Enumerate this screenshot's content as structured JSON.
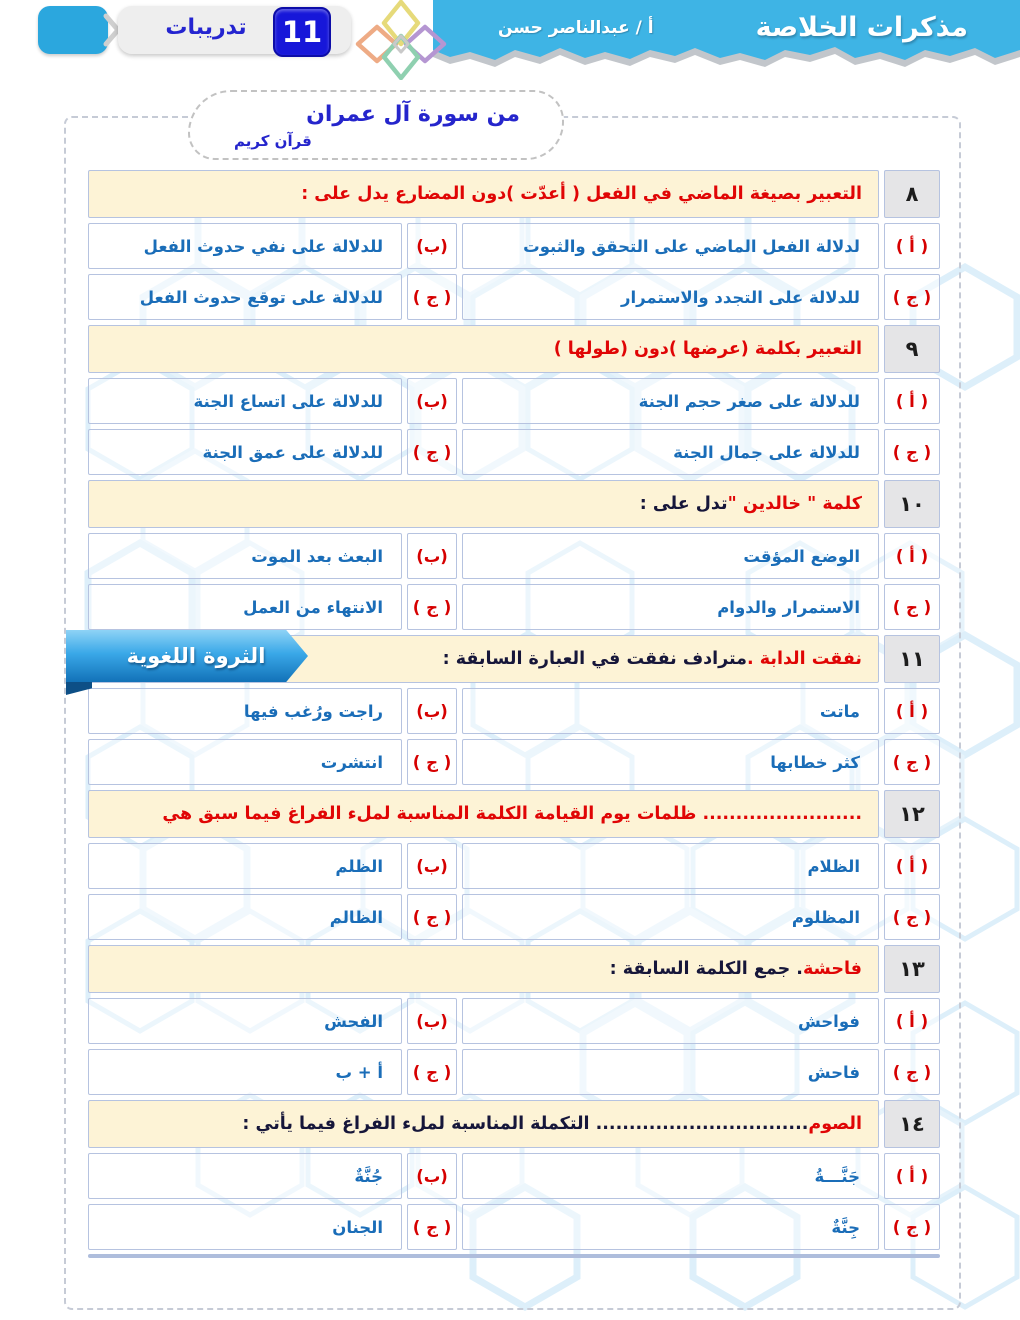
{
  "header": {
    "title": "مذكرات الخلاصة",
    "teacher": "أ / عبدالناصر حسن",
    "lesson_number": "11",
    "lesson_label": "تدريبات",
    "bar_color": "#3eb4e5",
    "icons": [
      "diamond-flower-logo-icon",
      "chevron-right-icon"
    ]
  },
  "surah_badge": {
    "title": "من سورة آل عمران",
    "subtitle": "قرآن كريم"
  },
  "ribbon": {
    "label": "الثروة اللغوية"
  },
  "colors": {
    "question_red": "#e00505",
    "question_dark": "#16163a",
    "option_blue": "#1a6db8",
    "letter_red": "#d60000",
    "header_bg": "#fdf3d6",
    "number_bg": "#e5e5e7",
    "cell_border": "#b6c3e0"
  },
  "questions": [
    {
      "num": "٨",
      "segments": [
        {
          "tone": "red",
          "text": "التعبير بصيغة الماضي في الفعل ( أعدّت )دون المضارع يدل على :"
        }
      ],
      "options": [
        {
          "letter": "( أ )",
          "text": "لدلالة الفعل الماضي على التحقق والثبوت"
        },
        {
          "letter": "(ب)",
          "text": "للدلالة على نفي حدوث الفعل"
        },
        {
          "letter": "( ج )",
          "text": "للدلالة على التجدد والاستمرار"
        },
        {
          "letter": "( ج )",
          "text": "للدلالة على توقع حدوث الفعل"
        }
      ]
    },
    {
      "num": "٩",
      "segments": [
        {
          "tone": "red",
          "text": "التعبير بكلمة (عرضها )دون (طولها )"
        }
      ],
      "options": [
        {
          "letter": "( أ )",
          "text": "للدلالة على صغر حجم الجنة"
        },
        {
          "letter": "(ب)",
          "text": "للدلالة على اتساع الجنة"
        },
        {
          "letter": "( ج )",
          "text": "للدلالة على جمال الجنة"
        },
        {
          "letter": "( ج )",
          "text": "للدلالة على عمق الجنة"
        }
      ]
    },
    {
      "num": "١٠",
      "segments": [
        {
          "tone": "red",
          "text": "كلمة \" خالدين \" "
        },
        {
          "tone": "dark",
          "text": "تدل على :"
        }
      ],
      "options": [
        {
          "letter": "( أ )",
          "text": "الوضع المؤقت"
        },
        {
          "letter": "(ب)",
          "text": "البعث بعد الموت"
        },
        {
          "letter": "( ج )",
          "text": "الاستمرار والدوام"
        },
        {
          "letter": "( ج )",
          "text": "الانتهاء من العمل"
        }
      ]
    },
    {
      "num": "١١",
      "segments": [
        {
          "tone": "red",
          "text": "نفقت الدابة ."
        },
        {
          "tone": "dark",
          "text": " مترادف نفقت في العبارة السابقة :"
        }
      ],
      "options": [
        {
          "letter": "( أ )",
          "text": "ماتت"
        },
        {
          "letter": "(ب)",
          "text": "راجت ورُغب فيها"
        },
        {
          "letter": "( ج )",
          "text": "كثر خطابها"
        },
        {
          "letter": "( ج )",
          "text": "انتشرت"
        }
      ]
    },
    {
      "num": "١٢",
      "segments": [
        {
          "tone": "red",
          "text": "........................ ظلمات يوم القيامة الكلمة المناسبة لملء الفراغ فيما سبق هي"
        }
      ],
      "options": [
        {
          "letter": "( أ )",
          "text": "الظلام"
        },
        {
          "letter": "(ب)",
          "text": "الظلم"
        },
        {
          "letter": "( ج )",
          "text": "المظلوم"
        },
        {
          "letter": "( ج )",
          "text": "الظالم"
        }
      ]
    },
    {
      "num": "١٣",
      "segments": [
        {
          "tone": "red",
          "text": "فاحشة"
        },
        {
          "tone": "dark",
          "text": " . جمع الكلمة السابقة :"
        }
      ],
      "options": [
        {
          "letter": "( أ )",
          "text": "فواحش"
        },
        {
          "letter": "(ب)",
          "text": "الفحش"
        },
        {
          "letter": "( ج )",
          "text": "فاحش"
        },
        {
          "letter": "( ج )",
          "text": "أ  +  ب"
        }
      ]
    },
    {
      "num": "١٤",
      "segments": [
        {
          "tone": "red",
          "text": "الصوم"
        },
        {
          "tone": "dark",
          "text": " ................................ التكملة المناسبة لملء الفراغ فيما يأتي :"
        }
      ],
      "options": [
        {
          "letter": "( أ )",
          "text": "جَنَّـــةُ"
        },
        {
          "letter": "(ب)",
          "text": "جُنَّةٌ"
        },
        {
          "letter": "( ج )",
          "text": "جِنَّةٌ"
        },
        {
          "letter": "( ج )",
          "text": "الجنان"
        }
      ]
    }
  ]
}
